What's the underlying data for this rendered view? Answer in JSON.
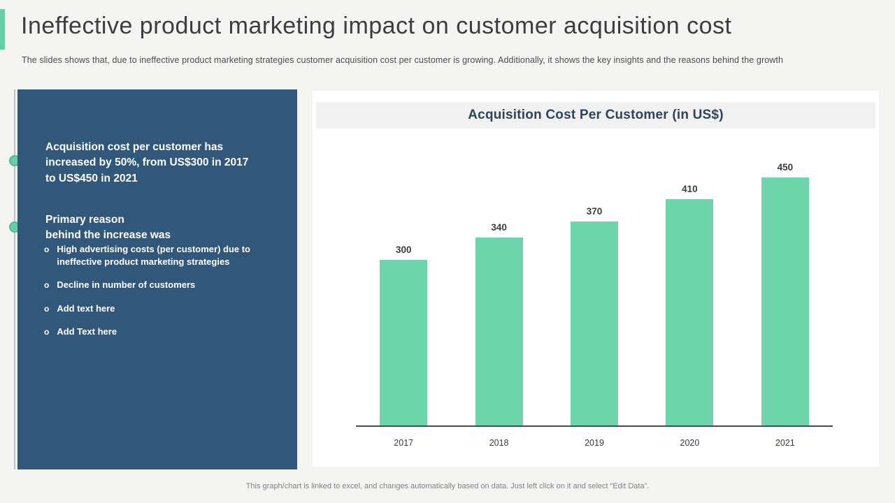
{
  "slide": {
    "title": "Ineffective product marketing impact on customer acquisition cost",
    "subtitle": "The slides shows that, due to ineffective product marketing strategies customer acquisition cost per customer is growing. Additionally, it shows the key insights and the reasons behind the growth",
    "footer": "This graph/chart is linked to excel, and changes automatically based on data. Just left click on it and select “Edit Data”."
  },
  "insights": {
    "primary": "Acquisition cost per customer has increased by 50%, from US$300 in 2017 to US$450 in 2021",
    "secondary_title": "Primary reason\nbehind the increase was",
    "bullet_marker": "o",
    "bullets": [
      "High advertising costs (per customer) due to ineffective product marketing strategies",
      "Decline in number of customers",
      "Add text here",
      "Add Text here"
    ]
  },
  "chart_data": {
    "type": "bar",
    "title": "Acquisition Cost Per Customer (in US$)",
    "categories": [
      "2017",
      "2018",
      "2019",
      "2020",
      "2021"
    ],
    "values": [
      300,
      340,
      370,
      410,
      450
    ],
    "xlabel": "",
    "ylabel": "",
    "ylim": [
      0,
      500
    ],
    "grid": false,
    "legend": false,
    "bar_color": "#6ed4ab",
    "value_label_color": "#3c3c3c",
    "axis_color": "#4a4a4a"
  },
  "colors": {
    "accent_teal": "#66cfa8",
    "panel_blue": "#31587b",
    "chart_title_navy": "#2e4458",
    "background": "#f4f4f2"
  }
}
